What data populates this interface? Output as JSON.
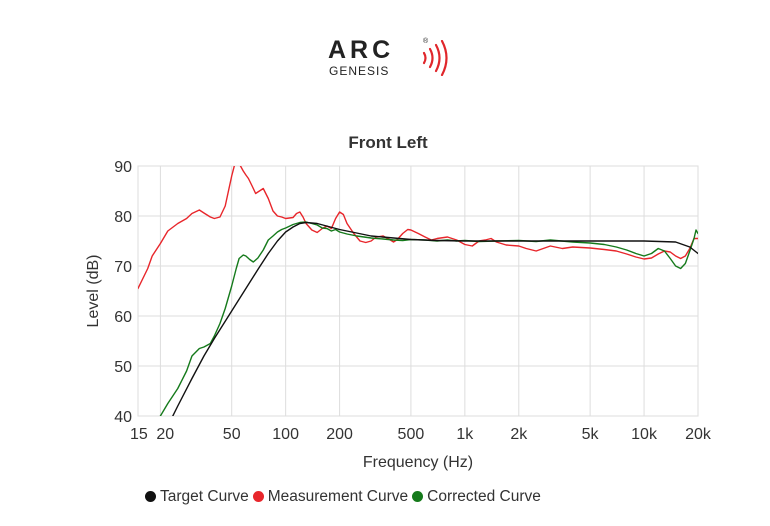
{
  "logo": {
    "brand": "ARC",
    "product": "GENESIS",
    "mark": "®",
    "wave_color": "#e0262b"
  },
  "colors": {
    "target": "#111111",
    "measurement": "#e8262b",
    "corrected": "#157a1b",
    "grid": "#dddddd"
  },
  "chart_data": {
    "type": "line",
    "title": "Front Left",
    "xlabel": "Frequency (Hz)",
    "ylabel": "Level (dB)",
    "xscale": "log",
    "xlim": [
      15,
      20000
    ],
    "ylim": [
      40,
      90
    ],
    "xticks": [
      {
        "value": 15,
        "label": "15"
      },
      {
        "value": 20,
        "label": "20"
      },
      {
        "value": 50,
        "label": "50"
      },
      {
        "value": 100,
        "label": "100"
      },
      {
        "value": 200,
        "label": "200"
      },
      {
        "value": 500,
        "label": "500"
      },
      {
        "value": 1000,
        "label": "1k"
      },
      {
        "value": 2000,
        "label": "2k"
      },
      {
        "value": 5000,
        "label": "5k"
      },
      {
        "value": 10000,
        "label": "10k"
      },
      {
        "value": 20000,
        "label": "20k"
      }
    ],
    "yticks": [
      {
        "value": 40,
        "label": "40"
      },
      {
        "value": 50,
        "label": "50"
      },
      {
        "value": 60,
        "label": "60"
      },
      {
        "value": 70,
        "label": "70"
      },
      {
        "value": 80,
        "label": "80"
      },
      {
        "value": 90,
        "label": "90"
      }
    ],
    "grid": true,
    "legend_position": "bottom",
    "series": [
      {
        "name": "Target Curve",
        "color": "#111111",
        "x": [
          22,
          25,
          30,
          35,
          40,
          50,
          60,
          70,
          80,
          90,
          100,
          110,
          120,
          130,
          150,
          200,
          300,
          500,
          700,
          1000,
          2000,
          5000,
          10000,
          15000,
          18000,
          20000
        ],
        "y": [
          38,
          42,
          47.5,
          52,
          55.5,
          61,
          65.5,
          69.3,
          72.5,
          75,
          76.8,
          77.8,
          78.5,
          78.7,
          78.5,
          77.3,
          76,
          75.3,
          75.1,
          75,
          75,
          75,
          75,
          74.8,
          73.8,
          72.5
        ]
      },
      {
        "name": "Measurement Curve",
        "color": "#e8262b",
        "x": [
          15,
          17,
          18,
          20,
          22,
          25,
          28,
          30,
          33,
          35,
          38,
          40,
          43,
          46,
          50,
          53,
          55,
          58,
          60,
          62,
          65,
          68,
          70,
          75,
          80,
          85,
          90,
          95,
          100,
          110,
          115,
          120,
          125,
          130,
          140,
          150,
          160,
          170,
          180,
          190,
          200,
          210,
          220,
          240,
          260,
          280,
          300,
          320,
          350,
          380,
          400,
          420,
          450,
          480,
          500,
          550,
          600,
          650,
          700,
          800,
          900,
          1000,
          1100,
          1200,
          1300,
          1400,
          1500,
          1700,
          2000,
          2200,
          2500,
          3000,
          3500,
          4000,
          5000,
          6000,
          7000,
          8000,
          9000,
          10000,
          11000,
          12000,
          13000,
          14000,
          15000,
          16000,
          17000,
          18000,
          19000,
          20000
        ],
        "y": [
          65.5,
          69.5,
          72,
          74.5,
          77,
          78.5,
          79.5,
          80.5,
          81.2,
          80.6,
          79.8,
          79.5,
          79.8,
          82,
          88,
          91.5,
          90.5,
          89,
          88.2,
          87.5,
          86,
          84.5,
          84.8,
          85.5,
          83.5,
          81,
          80,
          79.8,
          79.5,
          79.7,
          80.5,
          80.8,
          79.8,
          78.5,
          77.2,
          76.7,
          77.5,
          78,
          77.5,
          79.5,
          80.8,
          80.3,
          78.5,
          76.5,
          75,
          74.7,
          75,
          75.8,
          76,
          75.3,
          74.8,
          75.3,
          76.5,
          77.3,
          77.2,
          76.5,
          75.8,
          75.2,
          75.5,
          75.8,
          75.2,
          74.3,
          74,
          75,
          75.2,
          75.5,
          74.8,
          74.2,
          74,
          73.5,
          73,
          74,
          73.5,
          73.8,
          73.6,
          73.3,
          73,
          72.4,
          71.8,
          71.4,
          71.6,
          72.4,
          73,
          72.8,
          72,
          71.5,
          72,
          73.5,
          75.5,
          75.5
        ]
      },
      {
        "name": "Corrected Curve",
        "color": "#157a1b",
        "x": [
          20,
          22,
          25,
          28,
          30,
          33,
          35,
          38,
          40,
          43,
          46,
          50,
          53,
          55,
          58,
          60,
          63,
          66,
          70,
          75,
          80,
          85,
          90,
          95,
          100,
          110,
          120,
          130,
          140,
          150,
          160,
          170,
          180,
          190,
          200,
          220,
          250,
          300,
          350,
          400,
          450,
          500,
          600,
          700,
          800,
          900,
          1000,
          1200,
          1500,
          2000,
          2500,
          3000,
          4000,
          5000,
          6000,
          7000,
          8000,
          9000,
          10000,
          11000,
          12000,
          13000,
          14000,
          15000,
          16000,
          17000,
          18000,
          19000,
          19500,
          20000
        ],
        "y": [
          40,
          42.5,
          45.5,
          49,
          52,
          53.5,
          53.8,
          54.5,
          56,
          58.5,
          61.5,
          66,
          69.5,
          71.5,
          72.2,
          72,
          71.3,
          70.8,
          71.6,
          73.2,
          75.2,
          76,
          76.8,
          77.3,
          77.6,
          78.3,
          78.7,
          78.8,
          78.5,
          78.2,
          77.6,
          77.5,
          77,
          77.3,
          76.8,
          76.4,
          76,
          75.6,
          75.4,
          75.2,
          75.1,
          75.3,
          75.2,
          75,
          75.2,
          75,
          75.1,
          74.9,
          75,
          75.1,
          74.9,
          75.2,
          74.8,
          74.6,
          74.3,
          73.8,
          73.2,
          72.5,
          72,
          72.5,
          73.5,
          73,
          71.5,
          70,
          69.5,
          70.5,
          73,
          75.5,
          77.2,
          76.5
        ]
      }
    ]
  }
}
